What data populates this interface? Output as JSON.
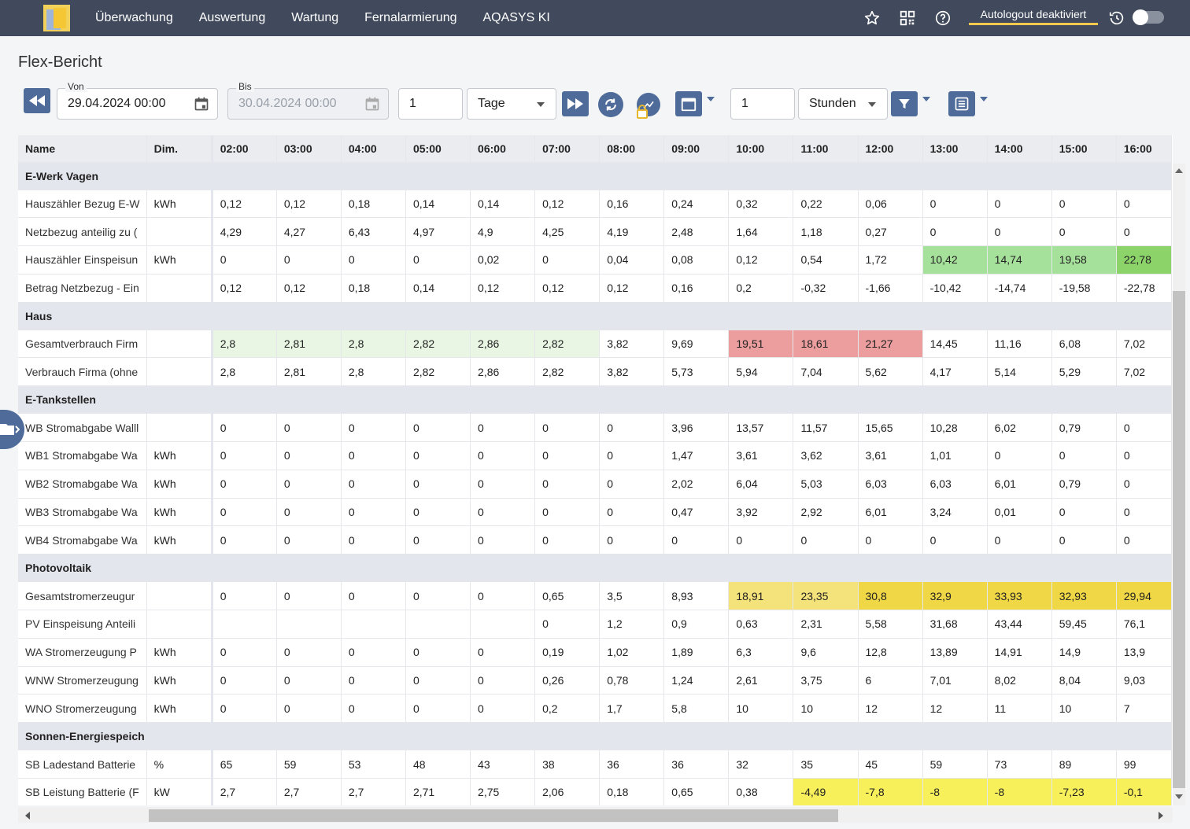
{
  "nav": {
    "items": [
      "Überwachung",
      "Auswertung",
      "Wartung",
      "Fernalarmierung",
      "AQASYS KI"
    ],
    "autologout": "Autologout deaktiviert"
  },
  "page": {
    "title": "Flex-Bericht"
  },
  "toolbar": {
    "von_label": "Von",
    "von_value": "29.04.2024 00:00",
    "bis_label": "Bis",
    "bis_value": "30.04.2024 00:00",
    "period_count": "1",
    "period_unit": "Tage",
    "interval_count": "1",
    "interval_unit": "Stunden"
  },
  "table": {
    "headers": [
      "Name",
      "Dim.",
      "02:00",
      "03:00",
      "04:00",
      "05:00",
      "06:00",
      "07:00",
      "08:00",
      "09:00",
      "10:00",
      "11:00",
      "12:00",
      "13:00",
      "14:00",
      "15:00",
      "16:00"
    ],
    "groups": [
      {
        "name": "E-Werk Vagen",
        "rows": [
          {
            "name": "Hauszähler Bezug E-W",
            "dim": "kWh",
            "values": [
              "0,12",
              "0,12",
              "0,18",
              "0,14",
              "0,14",
              "0,12",
              "0,16",
              "0,24",
              "0,32",
              "0,22",
              "0,06",
              "0",
              "0",
              "0",
              "0"
            ],
            "colors": []
          },
          {
            "name": "Netzbezug anteilig zu (",
            "dim": "",
            "values": [
              "4,29",
              "4,27",
              "6,43",
              "4,97",
              "4,9",
              "4,25",
              "4,19",
              "2,48",
              "1,64",
              "1,18",
              "0,27",
              "0",
              "0",
              "0",
              "0"
            ],
            "colors": []
          },
          {
            "name": "Hauszähler Einspeisun",
            "dim": "kWh",
            "values": [
              "0",
              "0",
              "0",
              "0",
              "0,02",
              "0",
              "0,04",
              "0,08",
              "0,12",
              "0,54",
              "1,72",
              "10,42",
              "14,74",
              "19,58",
              "22,78"
            ],
            "colors": [
              "",
              "",
              "",
              "",
              "",
              "",
              "",
              "",
              "",
              "",
              "",
              "g",
              "g",
              "g",
              "g2"
            ]
          },
          {
            "name": "Betrag Netzbezug - Ein",
            "dim": "",
            "values": [
              "0,12",
              "0,12",
              "0,18",
              "0,14",
              "0,12",
              "0,12",
              "0,12",
              "0,16",
              "0,2",
              "-0,32",
              "-1,66",
              "-10,42",
              "-14,74",
              "-19,58",
              "-22,78"
            ],
            "colors": []
          }
        ]
      },
      {
        "name": "Haus",
        "rows": [
          {
            "name": "Gesamtverbrauch Firm",
            "dim": "",
            "values": [
              "2,8",
              "2,81",
              "2,8",
              "2,82",
              "2,86",
              "2,82",
              "3,82",
              "9,69",
              "19,51",
              "18,61",
              "21,27",
              "14,45",
              "11,16",
              "6,08",
              "7,02"
            ],
            "colors": [
              "lg",
              "lg",
              "lg",
              "lg",
              "lg",
              "lg",
              "",
              "",
              "r",
              "r",
              "r",
              "",
              "",
              "",
              ""
            ]
          },
          {
            "name": "Verbrauch Firma (ohne",
            "dim": "",
            "values": [
              "2,8",
              "2,81",
              "2,8",
              "2,82",
              "2,86",
              "2,82",
              "3,82",
              "5,73",
              "5,94",
              "7,04",
              "5,62",
              "4,17",
              "5,14",
              "5,29",
              "7,02"
            ],
            "colors": []
          }
        ]
      },
      {
        "name": "E-Tankstellen",
        "rows": [
          {
            "name": "WB Stromabgabe Walll",
            "dim": "",
            "values": [
              "0",
              "0",
              "0",
              "0",
              "0",
              "0",
              "0",
              "3,96",
              "13,57",
              "11,57",
              "15,65",
              "10,28",
              "6,02",
              "0,79",
              "0"
            ],
            "colors": []
          },
          {
            "name": "WB1 Stromabgabe Wa",
            "dim": "kWh",
            "values": [
              "0",
              "0",
              "0",
              "0",
              "0",
              "0",
              "0",
              "1,47",
              "3,61",
              "3,62",
              "3,61",
              "1,01",
              "0",
              "0",
              "0"
            ],
            "colors": []
          },
          {
            "name": "WB2 Stromabgabe Wa",
            "dim": "kWh",
            "values": [
              "0",
              "0",
              "0",
              "0",
              "0",
              "0",
              "0",
              "2,02",
              "6,04",
              "5,03",
              "6,03",
              "6,03",
              "6,01",
              "0,79",
              "0"
            ],
            "colors": []
          },
          {
            "name": "WB3 Stromabgabe Wa",
            "dim": "kWh",
            "values": [
              "0",
              "0",
              "0",
              "0",
              "0",
              "0",
              "0",
              "0,47",
              "3,92",
              "2,92",
              "6,01",
              "3,24",
              "0,01",
              "0",
              "0"
            ],
            "colors": []
          },
          {
            "name": "WB4 Stromabgabe Wa",
            "dim": "kWh",
            "values": [
              "0",
              "0",
              "0",
              "0",
              "0",
              "0",
              "0",
              "0",
              "0",
              "0",
              "0",
              "0",
              "0",
              "0",
              "0"
            ],
            "colors": []
          }
        ]
      },
      {
        "name": "Photovoltaik",
        "rows": [
          {
            "name": "Gesamtstromerzeugur",
            "dim": "",
            "values": [
              "0",
              "0",
              "0",
              "0",
              "0",
              "0,65",
              "3,5",
              "8,93",
              "18,91",
              "23,35",
              "30,8",
              "32,9",
              "33,93",
              "32,93",
              "29,94"
            ],
            "colors": [
              "",
              "",
              "",
              "",
              "",
              "",
              "",
              "",
              "yl",
              "yl",
              "y",
              "y",
              "y",
              "y",
              "y"
            ]
          },
          {
            "name": "PV Einspeisung Anteili",
            "dim": "",
            "values": [
              "",
              "",
              "",
              "",
              "",
              "0",
              "1,2",
              "0,9",
              "0,63",
              "2,31",
              "5,58",
              "31,68",
              "43,44",
              "59,45",
              "76,1"
            ],
            "colors": []
          },
          {
            "name": "WA Stromerzeugung P",
            "dim": "kWh",
            "values": [
              "0",
              "0",
              "0",
              "0",
              "0",
              "0,19",
              "1,02",
              "1,89",
              "6,3",
              "9,6",
              "12,8",
              "13,89",
              "14,91",
              "14,9",
              "13,9"
            ],
            "colors": []
          },
          {
            "name": "WNW Stromerzeugung",
            "dim": "kWh",
            "values": [
              "0",
              "0",
              "0",
              "0",
              "0",
              "0,26",
              "0,78",
              "1,24",
              "2,61",
              "3,75",
              "6",
              "7,01",
              "8,02",
              "8,04",
              "9,03"
            ],
            "colors": []
          },
          {
            "name": "WNO Stromerzeugung",
            "dim": "kWh",
            "values": [
              "0",
              "0",
              "0",
              "0",
              "0",
              "0,2",
              "1,7",
              "5,8",
              "10",
              "10",
              "12",
              "12",
              "11",
              "10",
              "7"
            ],
            "colors": []
          }
        ]
      },
      {
        "name": "Sonnen-Energiespeich",
        "rows": [
          {
            "name": "SB Ladestand Batterie",
            "dim": "%",
            "values": [
              "65",
              "59",
              "53",
              "48",
              "43",
              "38",
              "36",
              "36",
              "32",
              "35",
              "45",
              "59",
              "73",
              "89",
              "99"
            ],
            "colors": []
          },
          {
            "name": "SB Leistung Batterie (F",
            "dim": "kW",
            "values": [
              "2,7",
              "2,7",
              "2,7",
              "2,71",
              "2,75",
              "2,06",
              "0,18",
              "0,65",
              "0,38",
              "-4,49",
              "-7,8",
              "-8",
              "-8",
              "-7,23",
              "-0,1"
            ],
            "colors": [
              "",
              "",
              "",
              "",
              "",
              "",
              "",
              "",
              "",
              "yy",
              "yy",
              "yy",
              "yy",
              "yy",
              "yy"
            ]
          }
        ]
      }
    ]
  },
  "colors": {
    "topbar": "#414a5c",
    "accent": "#4e6b99",
    "highlight_light_green": "#e9f6e3",
    "highlight_green": "#a5e19a",
    "highlight_red": "#ec9e9e",
    "highlight_yellow": "#efd745",
    "highlight_bright_yellow": "#f7f05a",
    "autologout_underline": "#f2c94c"
  },
  "icons": [
    "star-icon",
    "qr-code-icon",
    "help-icon",
    "history-icon",
    "rewind-icon",
    "calendar-icon",
    "fast-forward-icon",
    "refresh-icon",
    "chart-lock-icon",
    "calendar-range-icon",
    "filter-icon",
    "list-icon",
    "folder-icon"
  ]
}
